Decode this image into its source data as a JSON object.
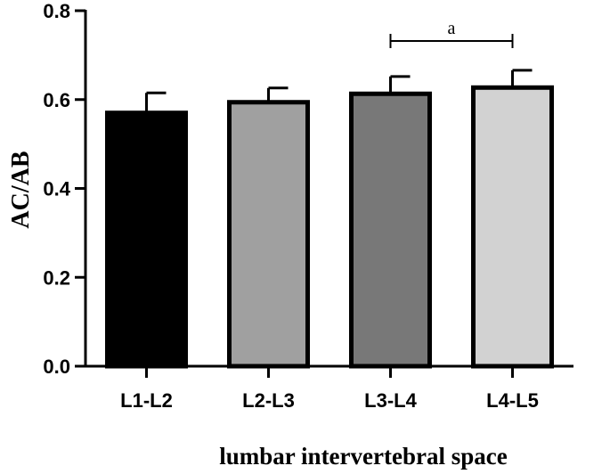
{
  "chart_data": {
    "type": "bar",
    "title": "",
    "xlabel": "lumbar intervertebral space",
    "ylabel": "AC/AB",
    "categories": [
      "L1-L2",
      "L2-L3",
      "L3-L4",
      "L4-L5"
    ],
    "values": [
      0.57,
      0.594,
      0.613,
      0.627
    ],
    "errors": [
      0.045,
      0.032,
      0.039,
      0.039
    ],
    "colors": [
      "#000000",
      "#a0a0a0",
      "#787878",
      "#d2d2d2"
    ],
    "ylim": [
      0,
      0.8
    ],
    "yticks": [
      "0.0",
      "0.2",
      "0.4",
      "0.6",
      "0.8"
    ],
    "grid": false,
    "annotations": [
      {
        "text": "a",
        "from": "L3-L4",
        "to": "L4-L5"
      }
    ]
  }
}
